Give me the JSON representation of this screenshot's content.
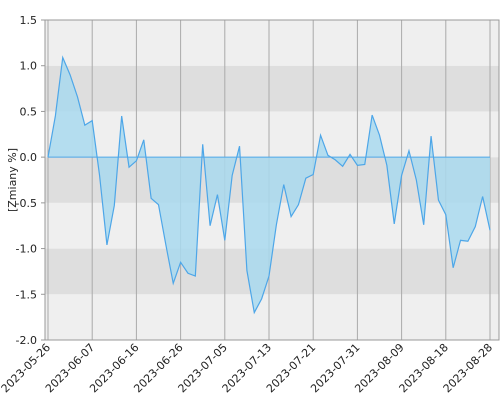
{
  "chart_data": {
    "type": "area",
    "ylabel": "[Zmiany %]",
    "categories": [
      "2023-05-26",
      null,
      null,
      null,
      null,
      null,
      "2023-06-07",
      null,
      null,
      null,
      null,
      null,
      "2023-06-16",
      null,
      null,
      null,
      null,
      null,
      "2023-06-26",
      null,
      null,
      null,
      null,
      null,
      "2023-07-05",
      null,
      null,
      null,
      null,
      null,
      "2023-07-13",
      null,
      null,
      null,
      null,
      null,
      "2023-07-21",
      null,
      null,
      null,
      null,
      null,
      "2023-07-31",
      null,
      null,
      null,
      null,
      null,
      "2023-08-09",
      null,
      null,
      null,
      null,
      null,
      "2023-08-18",
      null,
      null,
      null,
      null,
      null,
      "2023-08-28"
    ],
    "values": [
      0,
      0.45,
      1.09,
      0.9,
      0.66,
      0.35,
      0.4,
      -0.2,
      -0.96,
      -0.53,
      0.45,
      -0.11,
      -0.04,
      0.19,
      -0.45,
      -0.52,
      -0.96,
      -1.38,
      -1.15,
      -1.27,
      -1.3,
      0.14,
      -0.75,
      -0.41,
      -0.91,
      -0.2,
      0.12,
      -1.24,
      -1.7,
      -1.55,
      -1.3,
      -0.74,
      -0.3,
      -0.65,
      -0.52,
      -0.23,
      -0.19,
      0.24,
      0.02,
      -0.03,
      -0.1,
      0.03,
      -0.09,
      -0.08,
      0.46,
      0.24,
      -0.09,
      -0.73,
      -0.2,
      0.07,
      -0.25,
      -0.74,
      0.23,
      -0.47,
      -0.63,
      -1.21,
      -0.91,
      -0.92,
      -0.76,
      -0.43,
      -0.8
    ],
    "color": "#4da6e8",
    "fill": "#a9d9ee",
    "ylim": [
      -2.0,
      1.5
    ],
    "yticks": [
      {
        "value": -2.0,
        "label": "-2.0"
      },
      -1.5,
      {
        "value": -1.0,
        "label": "-1.0"
      },
      -0.5,
      {
        "value": 0.0,
        "label": "0.0"
      },
      0.5,
      {
        "value": 1.0,
        "label": "1.0"
      },
      1.5
    ],
    "grid": true
  }
}
